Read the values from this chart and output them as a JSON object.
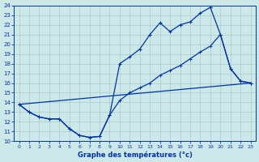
{
  "title": "Graphe des températures (°c)",
  "bg_color": "#cce8e8",
  "grid_color": "#aacccc",
  "line_color": "#0033aa",
  "xlim": [
    -0.5,
    23.5
  ],
  "ylim": [
    10,
    24
  ],
  "xticks": [
    0,
    1,
    2,
    3,
    4,
    5,
    6,
    7,
    8,
    9,
    10,
    11,
    12,
    13,
    14,
    15,
    16,
    17,
    18,
    19,
    20,
    21,
    22,
    23
  ],
  "yticks": [
    10,
    11,
    12,
    13,
    14,
    15,
    16,
    17,
    18,
    19,
    20,
    21,
    22,
    23,
    24
  ],
  "series1_x": [
    0,
    1,
    2,
    3,
    4,
    5,
    6,
    7,
    8,
    9,
    10,
    11,
    12,
    13,
    14,
    15,
    16,
    17,
    18,
    19,
    20,
    21,
    22,
    23
  ],
  "series1_y": [
    13.8,
    13.0,
    12.5,
    12.3,
    12.3,
    11.3,
    10.6,
    10.4,
    10.5,
    12.7,
    18.0,
    18.7,
    19.5,
    21.0,
    22.2,
    21.3,
    22.0,
    22.3,
    23.2,
    23.8,
    null,
    null,
    null,
    null
  ],
  "series2_x": [
    0,
    23
  ],
  "series2_y": [
    13.8,
    16.0
  ],
  "series3_x": [
    0,
    1,
    2,
    3,
    4,
    5,
    6,
    7,
    8,
    9,
    10,
    11,
    12,
    13,
    14,
    15,
    16,
    17,
    18,
    19,
    20,
    21,
    22,
    23
  ],
  "series3_y": [
    13.8,
    13.0,
    12.5,
    12.3,
    12.3,
    11.3,
    10.6,
    10.4,
    10.5,
    12.7,
    14.2,
    15.0,
    15.5,
    16.0,
    16.8,
    17.3,
    17.8,
    18.5,
    19.2,
    19.8,
    21.0,
    17.5,
    16.2,
    16.0
  ],
  "series4_x": [
    19,
    20,
    21,
    22,
    23
  ],
  "series4_y": [
    23.8,
    21.0,
    17.5,
    16.2,
    16.0
  ]
}
